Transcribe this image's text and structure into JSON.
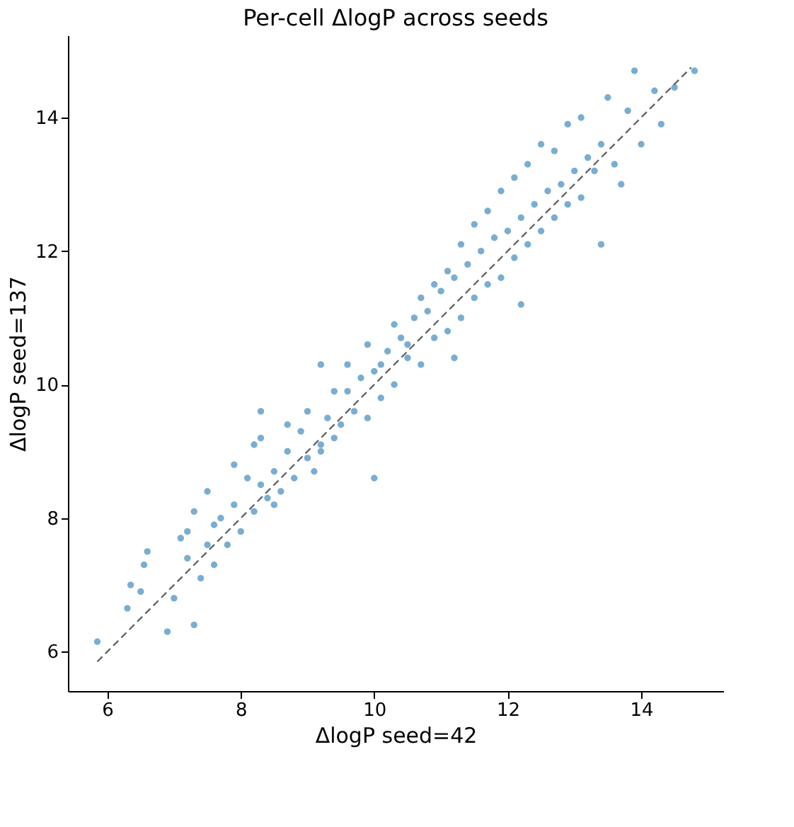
{
  "chart_data": {
    "type": "scatter",
    "title": "Per-cell ΔlogP across seeds",
    "xlabel": "ΔlogP seed=42",
    "ylabel": "ΔlogP seed=137",
    "xlim": [
      5.41,
      15.23
    ],
    "ylim": [
      5.41,
      15.23
    ],
    "xticks": [
      6,
      8,
      10,
      12,
      14
    ],
    "yticks": [
      6,
      8,
      10,
      12,
      14
    ],
    "grid": false,
    "marker": "circle",
    "series": [
      {
        "color": "#1f77b4",
        "x": [
          5.85,
          6.3,
          6.35,
          6.5,
          6.6,
          6.9,
          7.3,
          6.55,
          7.0,
          7.2,
          7.1,
          7.4,
          7.5,
          7.3,
          7.6,
          7.7,
          7.8,
          7.5,
          7.9,
          8.0,
          7.6,
          8.1,
          8.2,
          8.3,
          7.9,
          8.4,
          8.5,
          8.3,
          8.6,
          8.7,
          8.8,
          8.5,
          8.9,
          9.0,
          8.7,
          9.1,
          9.2,
          8.2,
          7.2,
          9.3,
          9.4,
          9.0,
          9.5,
          9.6,
          9.2,
          9.7,
          9.8,
          9.4,
          9.9,
          10.0,
          9.6,
          10.1,
          10.2,
          9.9,
          10.3,
          10.4,
          10.1,
          10.5,
          10.6,
          10.3,
          10.7,
          10.8,
          10.5,
          10.9,
          11.0,
          10.7,
          11.1,
          11.2,
          10.9,
          11.3,
          11.4,
          11.1,
          11.5,
          11.6,
          11.3,
          11.7,
          11.8,
          11.5,
          11.9,
          12.0,
          11.7,
          12.1,
          12.2,
          11.9,
          12.3,
          12.4,
          12.1,
          12.5,
          12.6,
          12.3,
          12.7,
          12.8,
          12.5,
          12.9,
          13.0,
          12.7,
          13.1,
          13.2,
          12.9,
          13.3,
          13.4,
          13.1,
          13.6,
          13.8,
          13.5,
          14.0,
          14.2,
          13.9,
          14.5,
          14.8,
          14.3,
          13.7,
          11.2,
          12.2,
          9.2,
          8.3,
          10.0,
          13.4
        ],
        "values": [
          6.15,
          6.65,
          7.0,
          6.9,
          7.5,
          6.3,
          6.4,
          7.3,
          6.8,
          7.4,
          7.7,
          7.1,
          7.6,
          8.1,
          7.3,
          8.0,
          7.6,
          8.4,
          8.2,
          7.8,
          7.9,
          8.6,
          8.1,
          8.5,
          8.8,
          8.3,
          8.7,
          9.2,
          8.4,
          9.0,
          8.6,
          8.2,
          9.3,
          8.9,
          9.4,
          8.7,
          9.1,
          9.1,
          7.8,
          9.5,
          9.2,
          9.6,
          9.4,
          9.9,
          9.0,
          9.6,
          10.1,
          9.9,
          9.5,
          10.2,
          10.3,
          9.8,
          10.5,
          10.6,
          10.0,
          10.7,
          10.3,
          10.4,
          11.0,
          10.9,
          10.3,
          11.1,
          10.6,
          10.7,
          11.4,
          11.3,
          10.8,
          11.6,
          11.5,
          11.0,
          11.8,
          11.7,
          11.3,
          12.0,
          12.1,
          11.5,
          12.2,
          12.4,
          11.6,
          12.3,
          12.6,
          11.9,
          12.5,
          12.9,
          12.1,
          12.7,
          13.1,
          12.3,
          12.9,
          13.3,
          12.5,
          13.0,
          13.6,
          12.7,
          13.2,
          13.5,
          12.8,
          13.4,
          13.9,
          13.2,
          13.6,
          14.0,
          13.3,
          14.1,
          14.3,
          13.6,
          14.4,
          14.7,
          14.45,
          14.7,
          13.9,
          13.0,
          10.4,
          11.2,
          10.3,
          9.6,
          8.6,
          12.1
        ]
      },
      {
        "type": "line",
        "marker": "none",
        "color": "#666666",
        "line_style": "dashed",
        "x": [
          5.85,
          14.75
        ],
        "values": [
          5.85,
          14.75
        ]
      }
    ]
  }
}
